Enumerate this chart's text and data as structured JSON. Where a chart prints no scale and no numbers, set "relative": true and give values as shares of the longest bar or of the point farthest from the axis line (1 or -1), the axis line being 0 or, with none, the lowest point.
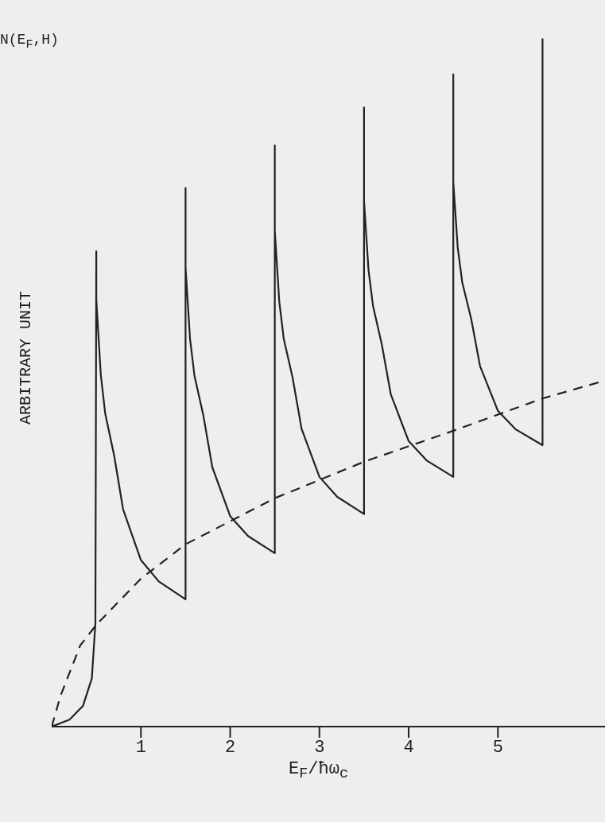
{
  "chart_data": {
    "type": "line",
    "relative": true,
    "xlabel": "E$_{F}$/ħω$_{c}$",
    "ylabel": "ARBITRARY UNIT",
    "annotations": [
      "N(E$_{F}$,H)"
    ],
    "xlim": [
      0,
      6.2
    ],
    "xticks": [
      1,
      2,
      3,
      4,
      5
    ],
    "series": [
      {
        "color": "#222222",
        "line_style": "solid",
        "x": [
          0,
          0.2,
          0.35,
          0.45,
          0.49,
          0.5,
          0.5,
          0.55,
          0.6,
          0.7,
          0.8,
          1.0,
          1.2,
          1.5,
          1.5,
          1.5,
          1.55,
          1.6,
          1.7,
          1.8,
          2.0,
          2.2,
          2.5,
          2.5,
          2.5,
          2.55,
          2.6,
          2.7,
          2.8,
          3.0,
          3.2,
          3.5,
          3.5,
          3.5,
          3.55,
          3.6,
          3.7,
          3.8,
          4.0,
          4.2,
          4.5,
          4.5,
          4.5,
          4.55,
          4.6,
          4.7,
          4.8,
          5.0,
          5.2,
          5.5,
          5.5
        ],
        "values": [
          0,
          0.01,
          0.03,
          0.07,
          0.15,
          0.691,
          0.621,
          0.512,
          0.455,
          0.394,
          0.316,
          0.242,
          0.211,
          0.185,
          0.783,
          0.668,
          0.564,
          0.51,
          0.452,
          0.377,
          0.306,
          0.277,
          0.252,
          0.845,
          0.721,
          0.618,
          0.564,
          0.507,
          0.433,
          0.363,
          0.334,
          0.309,
          0.9,
          0.764,
          0.664,
          0.612,
          0.555,
          0.483,
          0.415,
          0.387,
          0.363,
          0.948,
          0.792,
          0.696,
          0.646,
          0.593,
          0.524,
          0.459,
          0.432,
          0.409,
          1.0
        ]
      },
      {
        "color": "#222222",
        "line_style": "dashed",
        "x": [
          0,
          0.1,
          0.32,
          0.5,
          1.0,
          1.5,
          2.5,
          3.5,
          4.5,
          5.5,
          6.2
        ],
        "values": [
          0,
          0.045,
          0.118,
          0.148,
          0.215,
          0.265,
          0.332,
          0.385,
          0.43,
          0.477,
          0.503
        ]
      }
    ]
  }
}
